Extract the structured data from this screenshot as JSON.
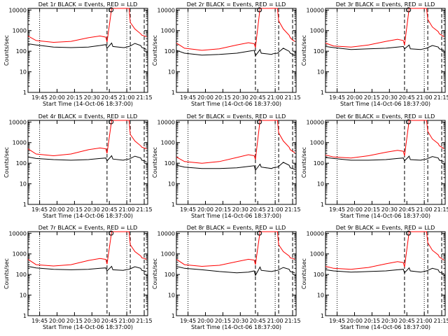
{
  "figure": {
    "xlabel": "Start Time (14-Oct-06 18:37:00)",
    "ylabel": "Counts/sec",
    "xticks": [
      "19:45",
      "20:00",
      "20:15",
      "20:30",
      "20:45",
      "21:00",
      "21:15"
    ],
    "yticks": [
      "1",
      "10",
      "100",
      "1000",
      "10000"
    ],
    "colors": {
      "events": "#000000",
      "lld": "#ff0000",
      "axes": "#000000",
      "background": "#ffffff"
    }
  },
  "chart_data": [
    {
      "type": "line",
      "title": "Det 1r BLACK = Events, RED = LLD",
      "xlabel": "Start Time (14-Oct-06 18:37:00)",
      "ylabel": "Counts/sec",
      "yscale": "log",
      "ylim": [
        1,
        12000
      ],
      "xlim_minutes": [
        58,
        161
      ],
      "x": [
        58,
        65,
        80,
        95,
        110,
        120,
        125,
        126,
        130,
        131,
        140,
        141,
        145,
        146,
        150,
        155,
        156,
        158,
        160
      ],
      "series": [
        {
          "name": "Events",
          "color": "#000000",
          "values": [
            230,
            200,
            160,
            150,
            160,
            190,
            210,
            140,
            250,
            170,
            150,
            150,
            170,
            180,
            240,
            190,
            150,
            140,
            120
          ]
        },
        {
          "name": "LLD",
          "color": "#ff0000",
          "values": [
            550,
            330,
            270,
            300,
            450,
            550,
            480,
            280,
            12000,
            12000,
            12000,
            12000,
            12000,
            2500,
            1200,
            700,
            600,
            560,
            500
          ]
        }
      ]
    },
    {
      "type": "line",
      "title": "Det 2r BLACK = Events, RED = LLD",
      "xlabel": "Start Time (14-Oct-06 18:37:00)",
      "ylabel": "Counts/sec",
      "yscale": "log",
      "ylim": [
        1,
        12000
      ],
      "xlim_minutes": [
        58,
        161
      ],
      "x": [
        58,
        65,
        80,
        95,
        110,
        120,
        125,
        126,
        130,
        131,
        140,
        141,
        145,
        146,
        150,
        155,
        156,
        158,
        160
      ],
      "series": [
        {
          "name": "Events",
          "color": "#000000",
          "values": [
            110,
            80,
            65,
            70,
            80,
            100,
            110,
            60,
            120,
            80,
            70,
            75,
            80,
            90,
            140,
            100,
            80,
            70,
            60
          ]
        },
        {
          "name": "LLD",
          "color": "#ff0000",
          "values": [
            250,
            140,
            110,
            130,
            200,
            260,
            230,
            150,
            12000,
            12000,
            12000,
            12000,
            12000,
            3000,
            1200,
            600,
            450,
            350,
            300
          ]
        }
      ]
    },
    {
      "type": "line",
      "title": "Det 3r BLACK = Events, RED = LLD",
      "xlabel": "Start Time (14-Oct-06 18:37:00)",
      "ylabel": "Counts/sec",
      "yscale": "log",
      "ylim": [
        1,
        12000
      ],
      "xlim_minutes": [
        58,
        161
      ],
      "x": [
        58,
        65,
        80,
        95,
        110,
        120,
        125,
        126,
        130,
        131,
        140,
        141,
        145,
        146,
        150,
        155,
        156,
        158,
        160
      ],
      "series": [
        {
          "name": "Events",
          "color": "#000000",
          "values": [
            170,
            150,
            120,
            130,
            140,
            160,
            170,
            130,
            200,
            130,
            120,
            125,
            140,
            150,
            190,
            160,
            130,
            120,
            110
          ]
        },
        {
          "name": "LLD",
          "color": "#ff0000",
          "values": [
            250,
            180,
            160,
            200,
            300,
            380,
            330,
            200,
            12000,
            12000,
            12000,
            12000,
            12000,
            3500,
            1500,
            900,
            700,
            600,
            500
          ]
        }
      ]
    },
    {
      "type": "line",
      "title": "Det 4r BLACK = Events, RED = LLD",
      "xlabel": "Start Time (14-Oct-06 18:37:00)",
      "ylabel": "Counts/sec",
      "yscale": "log",
      "ylim": [
        1,
        12000
      ],
      "xlim_minutes": [
        58,
        161
      ],
      "x": [
        58,
        65,
        80,
        95,
        110,
        120,
        125,
        126,
        130,
        131,
        140,
        141,
        145,
        146,
        150,
        155,
        156,
        158,
        160
      ],
      "series": [
        {
          "name": "Events",
          "color": "#000000",
          "values": [
            200,
            170,
            150,
            140,
            150,
            170,
            180,
            130,
            230,
            160,
            140,
            145,
            160,
            170,
            220,
            180,
            140,
            130,
            120
          ]
        },
        {
          "name": "LLD",
          "color": "#ff0000",
          "values": [
            500,
            280,
            230,
            280,
            450,
            550,
            500,
            300,
            12000,
            12000,
            12000,
            12000,
            12000,
            2500,
            1200,
            700,
            600,
            550,
            500
          ]
        }
      ]
    },
    {
      "type": "line",
      "title": "Det 5r BLACK = Events, RED = LLD",
      "xlabel": "Start Time (14-Oct-06 18:37:00)",
      "ylabel": "Counts/sec",
      "yscale": "log",
      "ylim": [
        1,
        12000
      ],
      "xlim_minutes": [
        58,
        161
      ],
      "x": [
        58,
        65,
        80,
        95,
        110,
        120,
        125,
        126,
        130,
        131,
        140,
        141,
        145,
        146,
        150,
        155,
        156,
        158,
        160
      ],
      "series": [
        {
          "name": "Events",
          "color": "#000000",
          "values": [
            80,
            65,
            55,
            55,
            60,
            70,
            75,
            45,
            90,
            65,
            55,
            60,
            65,
            70,
            110,
            80,
            60,
            55,
            50
          ]
        },
        {
          "name": "LLD",
          "color": "#ff0000",
          "values": [
            200,
            120,
            100,
            120,
            190,
            260,
            230,
            150,
            12000,
            12000,
            12000,
            12000,
            12000,
            3000,
            1200,
            600,
            450,
            380,
            320
          ]
        }
      ]
    },
    {
      "type": "line",
      "title": "Det 6r BLACK = Events, RED = LLD",
      "xlabel": "Start Time (14-Oct-06 18:37:00)",
      "ylabel": "Counts/sec",
      "yscale": "log",
      "ylim": [
        1,
        12000
      ],
      "xlim_minutes": [
        58,
        161
      ],
      "x": [
        58,
        65,
        80,
        95,
        110,
        120,
        125,
        126,
        130,
        131,
        140,
        141,
        145,
        146,
        150,
        155,
        156,
        158,
        160
      ],
      "series": [
        {
          "name": "Events",
          "color": "#000000",
          "values": [
            190,
            170,
            140,
            140,
            150,
            170,
            180,
            130,
            220,
            150,
            140,
            145,
            160,
            170,
            210,
            180,
            140,
            130,
            120
          ]
        },
        {
          "name": "LLD",
          "color": "#ff0000",
          "values": [
            250,
            200,
            180,
            230,
            340,
            420,
            380,
            230,
            12000,
            12000,
            12000,
            12000,
            12000,
            3500,
            1500,
            900,
            700,
            600,
            500
          ]
        }
      ]
    },
    {
      "type": "line",
      "title": "Det 7r BLACK = Events, RED = LLD",
      "xlabel": "Start Time (14-Oct-06 18:37:00)",
      "ylabel": "Counts/sec",
      "yscale": "log",
      "ylim": [
        1,
        12000
      ],
      "xlim_minutes": [
        58,
        161
      ],
      "x": [
        58,
        65,
        80,
        95,
        110,
        120,
        125,
        126,
        130,
        131,
        140,
        141,
        145,
        146,
        150,
        155,
        156,
        158,
        160
      ],
      "series": [
        {
          "name": "Events",
          "color": "#000000",
          "values": [
            250,
            210,
            180,
            170,
            180,
            200,
            210,
            150,
            250,
            170,
            160,
            165,
            180,
            190,
            240,
            200,
            160,
            150,
            140
          ]
        },
        {
          "name": "LLD",
          "color": "#ff0000",
          "values": [
            550,
            300,
            260,
            300,
            480,
            600,
            540,
            320,
            12000,
            12000,
            12000,
            12000,
            12000,
            2800,
            1300,
            800,
            650,
            600,
            550
          ]
        }
      ]
    },
    {
      "type": "line",
      "title": "Det 8r BLACK = Events, RED = LLD",
      "xlabel": "Start Time (14-Oct-06 18:37:00)",
      "ylabel": "Counts/sec",
      "yscale": "log",
      "ylim": [
        1,
        12000
      ],
      "xlim_minutes": [
        58,
        161
      ],
      "x": [
        58,
        65,
        80,
        95,
        110,
        120,
        125,
        126,
        130,
        131,
        140,
        141,
        145,
        146,
        150,
        155,
        156,
        158,
        160
      ],
      "series": [
        {
          "name": "Events",
          "color": "#000000",
          "values": [
            250,
            200,
            170,
            140,
            120,
            130,
            150,
            90,
            230,
            160,
            140,
            145,
            160,
            170,
            220,
            180,
            140,
            130,
            120
          ]
        },
        {
          "name": "LLD",
          "color": "#ff0000",
          "values": [
            550,
            300,
            250,
            280,
            420,
            550,
            500,
            300,
            12000,
            12000,
            12000,
            12000,
            12000,
            2800,
            1300,
            800,
            650,
            600,
            550
          ]
        }
      ]
    },
    {
      "type": "line",
      "title": "Det 9r BLACK = Events, RED = LLD",
      "xlabel": "Start Time (14-Oct-06 18:37:00)",
      "ylabel": "Counts/sec",
      "yscale": "log",
      "ylim": [
        1,
        12000
      ],
      "xlim_minutes": [
        58,
        161
      ],
      "x": [
        58,
        65,
        80,
        95,
        110,
        120,
        125,
        126,
        130,
        131,
        140,
        141,
        145,
        146,
        150,
        155,
        156,
        158,
        160
      ],
      "series": [
        {
          "name": "Events",
          "color": "#000000",
          "values": [
            170,
            150,
            130,
            140,
            150,
            170,
            180,
            120,
            210,
            150,
            130,
            135,
            150,
            160,
            200,
            170,
            130,
            120,
            110
          ]
        },
        {
          "name": "LLD",
          "color": "#ff0000",
          "values": [
            250,
            200,
            180,
            220,
            330,
            420,
            380,
            230,
            12000,
            12000,
            12000,
            12000,
            12000,
            3500,
            1500,
            900,
            700,
            600,
            500
          ]
        }
      ]
    }
  ]
}
